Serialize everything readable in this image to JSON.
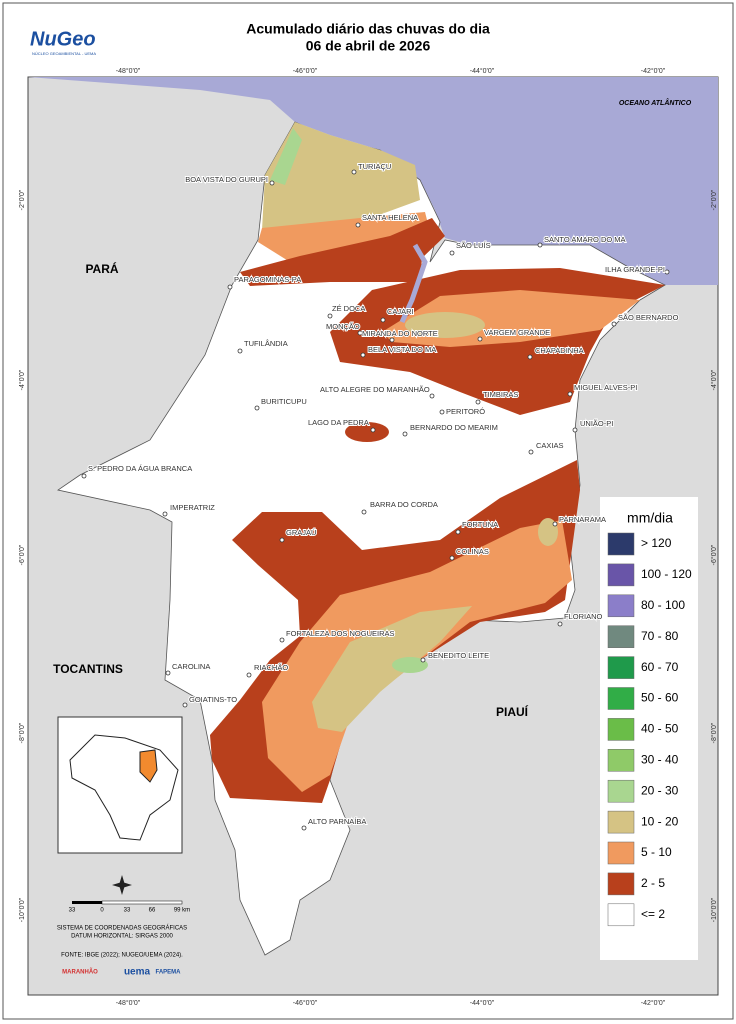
{
  "header": {
    "title": "Acumulado diário das chuvas do dia",
    "subtitle": "06 de abril de 2026",
    "logo": "NuGeo",
    "logo_sub": "NÚCLEO GEOAMBIENTAL - UEMA"
  },
  "map": {
    "ocean": "OCEANO ATLÂNTICO",
    "regions": [
      "PARÁ",
      "TOCANTINS",
      "PIAUÍ"
    ],
    "lon_labels": [
      "-48°0'0\"",
      "-46°0'0\"",
      "-44°0'0\"",
      "-42°0'0\""
    ],
    "lat_labels": [
      "-2°0'0\"",
      "-4°0'0\"",
      "-6°0'0\"",
      "-8°0'0\"",
      "-10°0'0\""
    ],
    "cities": [
      "BOA VISTA DO GURUPI",
      "TURIAÇU",
      "SANTA HELENA",
      "SÃO LUÍS",
      "SANTO AMARO DO MA",
      "ILHA GRANDE-PI",
      "PARAGOMINAS-PA",
      "ZÉ DOCA",
      "CAJARI",
      "MONÇÃO",
      "MIRANDA DO NORTE",
      "VARGEM GRANDE",
      "SÃO BERNARDO",
      "TUFILÂNDIA",
      "BELA VISTA DO MA",
      "CHAPADINHA",
      "ALTO ALEGRE DO MARANHÃO",
      "MIGUEL ALVES-PI",
      "TIMBIRAS",
      "BURITICUPU",
      "PERITORÓ",
      "LAGO DA PEDRA",
      "BERNARDO DO MEARIM",
      "UNIÃO-PI",
      "CAXIAS",
      "S. PEDRO DA ÁGUA BRANCA",
      "IMPERATRIZ",
      "BARRA DO CORDA",
      "FORTUNA",
      "PARNARAMA",
      "GRAJAÚ",
      "COLINAS",
      "FLORIANO",
      "FORTALEZA DOS NOGUEIRAS",
      "BENEDITO LEITE",
      "CAROLINA",
      "RIACHÃO",
      "GOIATINS-TO",
      "ALTO PARNAÍBA"
    ]
  },
  "legend": {
    "title": "mm/dia",
    "classes": [
      {
        "label": "> 120",
        "color": "#2c3a6b"
      },
      {
        "label": "100 - 120",
        "color": "#6955a8"
      },
      {
        "label": "80 - 100",
        "color": "#8b7ec9"
      },
      {
        "label": "70 - 80",
        "color": "#70897f"
      },
      {
        "label": "60 - 70",
        "color": "#1f9a4b"
      },
      {
        "label": "50 - 60",
        "color": "#31ad47"
      },
      {
        "label": "40 - 50",
        "color": "#6abd48"
      },
      {
        "label": "30 - 40",
        "color": "#8fca68"
      },
      {
        "label": "20 - 30",
        "color": "#a9d690"
      },
      {
        "label": "10 - 20",
        "color": "#d5c384"
      },
      {
        "label": "5 - 10",
        "color": "#f09a5f"
      },
      {
        "label": "2 - 5",
        "color": "#b8401c"
      },
      {
        "label": "<= 2",
        "color": "#ffffff"
      }
    ]
  },
  "scale": {
    "labels": [
      "33",
      "0",
      "33",
      "66",
      "99 km"
    ]
  },
  "notes": [
    "SISTEMA DE COORDENADAS GEOGRÁFICAS",
    "DATUM HORIZONTAL: SIRGAS 2000",
    "FONTE: IBGE (2022); NUGEO/UEMA (2024)."
  ],
  "logos": [
    "MARANHÃO",
    "uema",
    "FAPEMA"
  ]
}
